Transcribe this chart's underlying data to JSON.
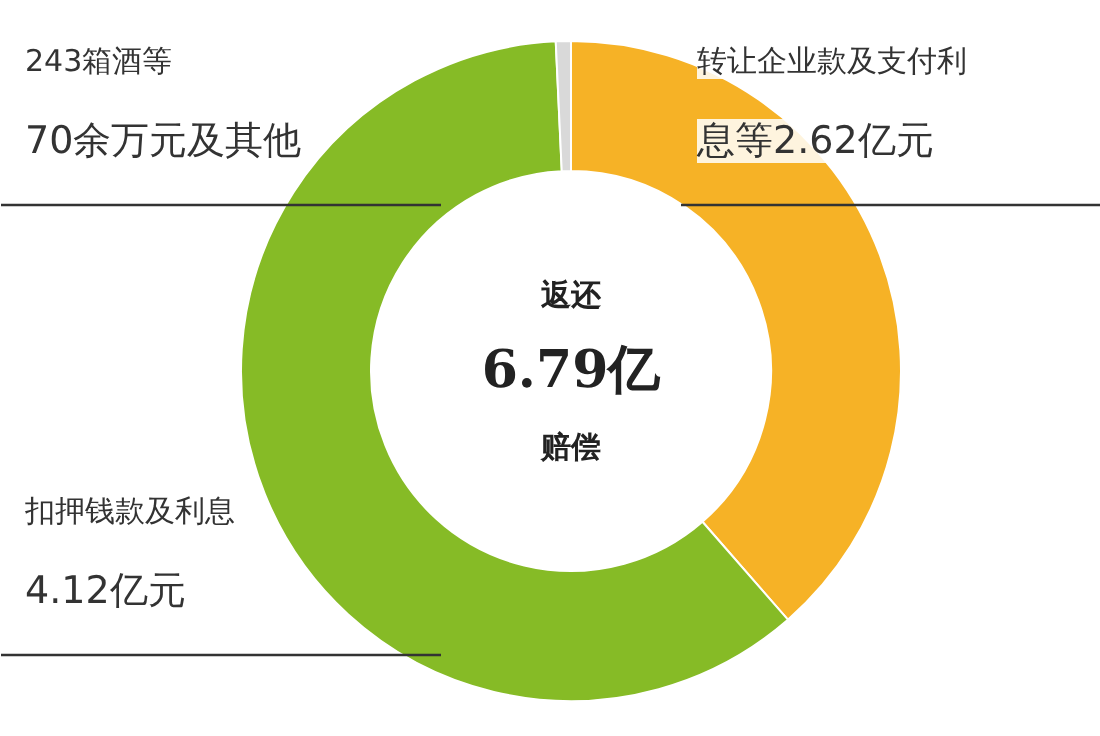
{
  "chart_data": {
    "type": "donut",
    "categories": [
      "转让企业款及支付利息等2.62亿元",
      "扣押钱款及利息4.12亿元",
      "243箱酒等70余万元及其他"
    ],
    "values": [
      2.62,
      4.12,
      0.05
    ],
    "colors": [
      "#f6b226",
      "#86bb26",
      "#d9d9d9"
    ],
    "annotations": [
      "返还",
      "6.79亿",
      "赔偿"
    ]
  }
}
